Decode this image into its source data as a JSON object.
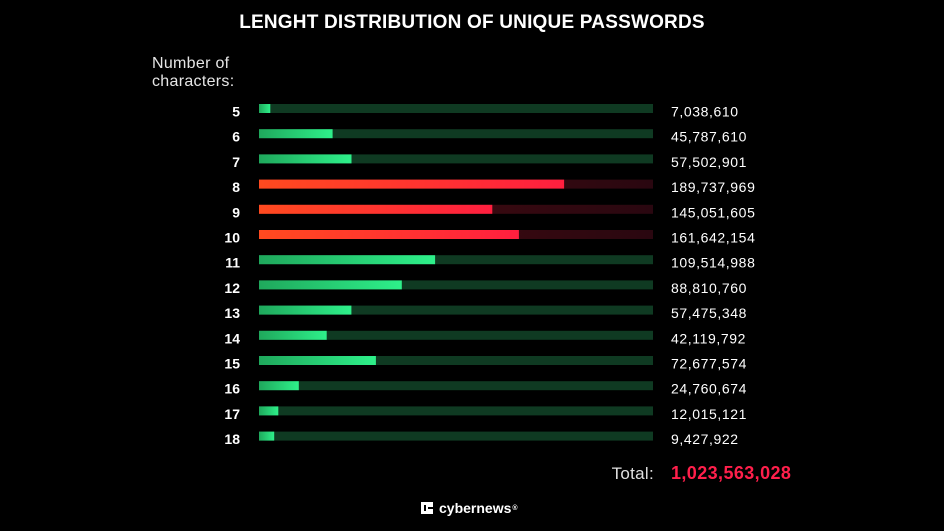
{
  "chart_data": {
    "type": "bar",
    "orientation": "horizontal",
    "title": "LENGHT DISTRIBUTION OF UNIQUE PASSWORDS",
    "ylabel_lines": [
      "Number of",
      "characters:"
    ],
    "categories": [
      "5",
      "6",
      "7",
      "8",
      "9",
      "10",
      "11",
      "12",
      "13",
      "14",
      "15",
      "16",
      "17",
      "18"
    ],
    "values": [
      7038610,
      45787610,
      57502901,
      189737969,
      145051605,
      161642154,
      109514988,
      88810760,
      57475348,
      42119792,
      72677574,
      24760674,
      12015121,
      9427922
    ],
    "value_labels": [
      "7,038,610",
      "45,787,610",
      "57,502,901",
      "189,737,969",
      "145,051,605",
      "161,642,154",
      "109,514,988",
      "88,810,760",
      "57,475,348",
      "42,119,792",
      "72,677,574",
      "24,760,674",
      "12,015,121",
      "9,427,922"
    ],
    "highlighted": [
      "8",
      "9",
      "10"
    ],
    "xlim": [
      0,
      245000000
    ],
    "grid": false,
    "colors": {
      "normal_bar": "#22d673",
      "normal_track": "#0f3a22",
      "highlight_bar": "#ff3b24",
      "highlight_track": "#3a0a12"
    },
    "total_label": "Total:",
    "total_value": "1,023,563,028"
  },
  "footer": {
    "brand": "cybernews",
    "brand_mark": "®",
    "logo_icon": "cybernews-logo-icon"
  }
}
